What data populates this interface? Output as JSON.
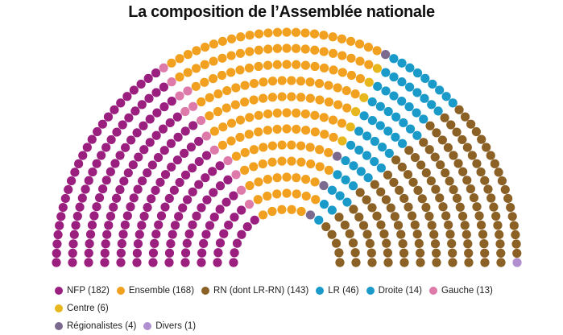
{
  "chart_data": {
    "type": "parliament",
    "title": "La composition de l’Assemblée nationale",
    "total_seats": 577,
    "series": [
      {
        "name": "NFP (182)",
        "value": 182,
        "color": "#9b1f7f"
      },
      {
        "name": "Gauche (13)",
        "value": 13,
        "color": "#dd7aa9"
      },
      {
        "name": "Ensemble (168)",
        "value": 168,
        "color": "#f2a01f"
      },
      {
        "name": "Centre (6)",
        "value": 6,
        "color": "#e7b71d"
      },
      {
        "name": "Régionalistes (4)",
        "value": 4,
        "color": "#7b6a8e"
      },
      {
        "name": "LR (46)",
        "value": 46,
        "color": "#1a9ac9"
      },
      {
        "name": "Droite (14)",
        "value": 14,
        "color": "#1a9ac9"
      },
      {
        "name": "RN (dont LR-RN) (143)",
        "value": 143,
        "color": "#8b6126"
      },
      {
        "name": "Divers (1)",
        "value": 1,
        "color": "#b08fd0"
      }
    ],
    "legend_order": [
      "NFP (182)",
      "Ensemble (168)",
      "RN (dont LR-RN) (143)",
      "LR (46)",
      "Droite (14)",
      "Gauche (13)",
      "Centre (6)",
      "Régionalistes (4)",
      "Divers (1)"
    ],
    "legend_placement": "bottom"
  },
  "legend": {
    "items": [
      {
        "label": "NFP (182)",
        "color": "#9b1f7f"
      },
      {
        "label": "Ensemble (168)",
        "color": "#f2a01f"
      },
      {
        "label": "RN (dont LR-RN) (143)",
        "color": "#8b6126"
      },
      {
        "label": "LR (46)",
        "color": "#1a9ac9"
      },
      {
        "label": "Droite (14)",
        "color": "#1a9ac9"
      },
      {
        "label": "Gauche (13)",
        "color": "#dd7aa9"
      },
      {
        "label": "Centre (6)",
        "color": "#e7b71d"
      },
      {
        "label": "Régionalistes (4)",
        "color": "#7b6a8e"
      },
      {
        "label": "Divers (1)",
        "color": "#b08fd0"
      }
    ]
  }
}
